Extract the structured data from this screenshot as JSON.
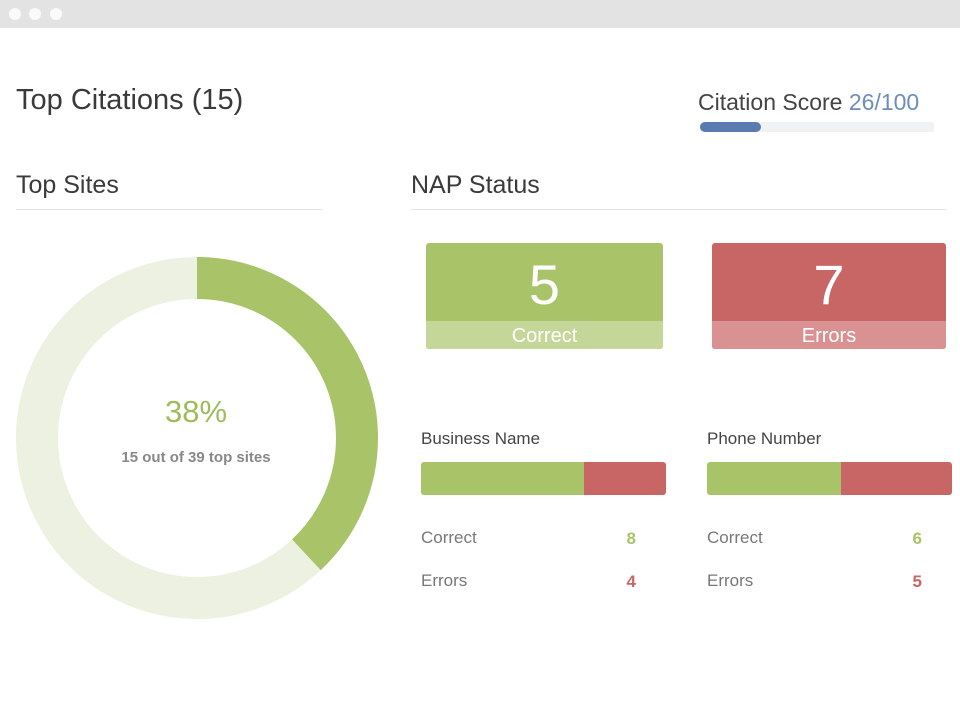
{
  "window": {
    "controls": [
      "close",
      "minimize",
      "zoom"
    ]
  },
  "header": {
    "title": "Top Citations (15)",
    "score_label": "Citation Score",
    "score_value": "26/100",
    "score_fraction": 0.26
  },
  "top_sites": {
    "title": "Top Sites",
    "percent": "38%",
    "fraction": 0.38,
    "subtitle": "15 out of 39 top sites"
  },
  "nap": {
    "title": "NAP Status",
    "correct": {
      "count": "5",
      "label": "Correct"
    },
    "errors": {
      "count": "7",
      "label": "Errors"
    },
    "metrics": [
      {
        "name": "Business Name",
        "correct_label": "Correct",
        "correct": "8",
        "errors_label": "Errors",
        "errors": "4",
        "correct_fraction": 0.667
      },
      {
        "name": "Phone Number",
        "correct_label": "Correct",
        "correct": "6",
        "errors_label": "Errors",
        "errors": "5",
        "correct_fraction": 0.545
      }
    ]
  },
  "colors": {
    "green": "#a9c468",
    "light_green": "#c5d798",
    "donut_track": "#edf1e1",
    "red": "#c86565",
    "light_red": "#d99191",
    "blue": "#5b7ab1",
    "score_text": "#6d8dbc"
  }
}
